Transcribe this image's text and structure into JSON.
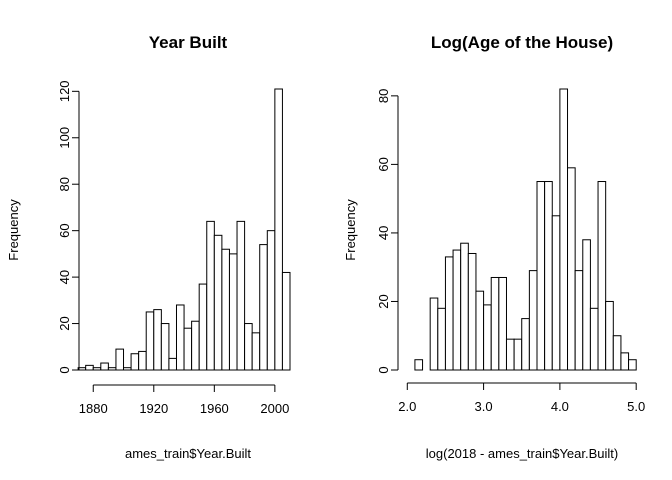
{
  "chart_data": [
    {
      "type": "bar",
      "title": "Year Built",
      "xlabel": "ames_train$Year.Built",
      "ylabel": "Frequency",
      "bin_width": 5,
      "bins": [
        {
          "start": 1870,
          "end": 1875,
          "count": 1
        },
        {
          "start": 1875,
          "end": 1880,
          "count": 2
        },
        {
          "start": 1880,
          "end": 1885,
          "count": 1
        },
        {
          "start": 1885,
          "end": 1890,
          "count": 3
        },
        {
          "start": 1890,
          "end": 1895,
          "count": 1
        },
        {
          "start": 1895,
          "end": 1900,
          "count": 9
        },
        {
          "start": 1900,
          "end": 1905,
          "count": 1
        },
        {
          "start": 1905,
          "end": 1910,
          "count": 7
        },
        {
          "start": 1910,
          "end": 1915,
          "count": 8
        },
        {
          "start": 1915,
          "end": 1920,
          "count": 25
        },
        {
          "start": 1920,
          "end": 1925,
          "count": 26
        },
        {
          "start": 1925,
          "end": 1930,
          "count": 20
        },
        {
          "start": 1930,
          "end": 1935,
          "count": 5
        },
        {
          "start": 1935,
          "end": 1940,
          "count": 28
        },
        {
          "start": 1940,
          "end": 1945,
          "count": 18
        },
        {
          "start": 1945,
          "end": 1950,
          "count": 21
        },
        {
          "start": 1950,
          "end": 1955,
          "count": 37
        },
        {
          "start": 1955,
          "end": 1960,
          "count": 64
        },
        {
          "start": 1960,
          "end": 1965,
          "count": 58
        },
        {
          "start": 1965,
          "end": 1970,
          "count": 52
        },
        {
          "start": 1970,
          "end": 1975,
          "count": 50
        },
        {
          "start": 1975,
          "end": 1980,
          "count": 64
        },
        {
          "start": 1980,
          "end": 1985,
          "count": 20
        },
        {
          "start": 1985,
          "end": 1990,
          "count": 16
        },
        {
          "start": 1990,
          "end": 1995,
          "count": 54
        },
        {
          "start": 1995,
          "end": 2000,
          "count": 60
        },
        {
          "start": 2000,
          "end": 2005,
          "count": 121
        },
        {
          "start": 2005,
          "end": 2010,
          "count": 42
        }
      ],
      "xticks": [
        1880,
        1920,
        1960,
        2000
      ],
      "xtick_labels": [
        "1880",
        "1920",
        "1960",
        "2000"
      ],
      "yticks": [
        0,
        20,
        40,
        60,
        80,
        100,
        120
      ],
      "ytick_labels": [
        "0",
        "20",
        "40",
        "60",
        "80",
        "100",
        "120"
      ],
      "xlim": [
        1862,
        2010
      ],
      "ylim": [
        0,
        121
      ],
      "grid": false
    },
    {
      "type": "bar",
      "title": "Log(Age of the House)",
      "xlabel": "log(2018 - ames_train$Year.Built)",
      "ylabel": "Frequency",
      "bin_width": 0.1,
      "bins": [
        {
          "start": 2.1,
          "end": 2.2,
          "count": 3
        },
        {
          "start": 2.2,
          "end": 2.3,
          "count": 0
        },
        {
          "start": 2.3,
          "end": 2.4,
          "count": 21
        },
        {
          "start": 2.4,
          "end": 2.5,
          "count": 18
        },
        {
          "start": 2.5,
          "end": 2.6,
          "count": 33
        },
        {
          "start": 2.6,
          "end": 2.7,
          "count": 35
        },
        {
          "start": 2.7,
          "end": 2.8,
          "count": 37
        },
        {
          "start": 2.8,
          "end": 2.9,
          "count": 34
        },
        {
          "start": 2.9,
          "end": 3.0,
          "count": 23
        },
        {
          "start": 3.0,
          "end": 3.1,
          "count": 19
        },
        {
          "start": 3.1,
          "end": 3.2,
          "count": 27
        },
        {
          "start": 3.2,
          "end": 3.3,
          "count": 27
        },
        {
          "start": 3.3,
          "end": 3.4,
          "count": 9
        },
        {
          "start": 3.4,
          "end": 3.5,
          "count": 9
        },
        {
          "start": 3.5,
          "end": 3.6,
          "count": 15
        },
        {
          "start": 3.6,
          "end": 3.7,
          "count": 29
        },
        {
          "start": 3.7,
          "end": 3.8,
          "count": 55
        },
        {
          "start": 3.8,
          "end": 3.9,
          "count": 55
        },
        {
          "start": 3.9,
          "end": 4.0,
          "count": 45
        },
        {
          "start": 4.0,
          "end": 4.1,
          "count": 82
        },
        {
          "start": 4.1,
          "end": 4.2,
          "count": 59
        },
        {
          "start": 4.2,
          "end": 4.3,
          "count": 29
        },
        {
          "start": 4.3,
          "end": 4.4,
          "count": 38
        },
        {
          "start": 4.4,
          "end": 4.5,
          "count": 18
        },
        {
          "start": 4.5,
          "end": 4.6,
          "count": 55
        },
        {
          "start": 4.6,
          "end": 4.7,
          "count": 20
        },
        {
          "start": 4.7,
          "end": 4.8,
          "count": 10
        },
        {
          "start": 4.8,
          "end": 4.9,
          "count": 5
        },
        {
          "start": 4.9,
          "end": 5.0,
          "count": 3
        }
      ],
      "xticks": [
        2.0,
        3.0,
        4.0,
        5.0
      ],
      "xtick_labels": [
        "2.0",
        "3.0",
        "4.0",
        "5.0"
      ],
      "yticks": [
        0,
        20,
        40,
        60,
        80
      ],
      "ytick_labels": [
        "0",
        "20",
        "40",
        "60",
        "80"
      ],
      "xlim": [
        1.97,
        5.05
      ],
      "ylim": [
        0,
        82
      ],
      "grid": false
    }
  ]
}
